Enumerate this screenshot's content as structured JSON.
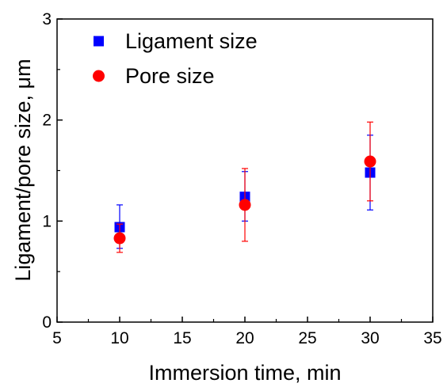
{
  "chart_data": {
    "type": "scatter",
    "xlabel": "Immersion time, min",
    "ylabel": "Ligament/pore size, μm",
    "xlim": [
      5,
      35
    ],
    "ylim": [
      0,
      3
    ],
    "xticks": [
      "5",
      "10",
      "15",
      "20",
      "25",
      "30",
      "35"
    ],
    "yticks": [
      "0",
      "1",
      "2",
      "3"
    ],
    "grid": false,
    "legend_position": "top-left",
    "series": [
      {
        "name": "Ligament size",
        "marker": "square",
        "color": "#0000ff",
        "x": [
          10,
          20,
          30
        ],
        "y": [
          0.94,
          1.24,
          1.48
        ],
        "err_low": [
          0.21,
          0.24,
          0.37
        ],
        "err_high": [
          0.22,
          0.25,
          0.37
        ]
      },
      {
        "name": "Pore size",
        "marker": "circle",
        "color": "#ff0000",
        "x": [
          10,
          20,
          30
        ],
        "y": [
          0.83,
          1.16,
          1.59
        ],
        "err_low": [
          0.14,
          0.36,
          0.39
        ],
        "err_high": [
          0.14,
          0.36,
          0.39
        ]
      }
    ]
  }
}
